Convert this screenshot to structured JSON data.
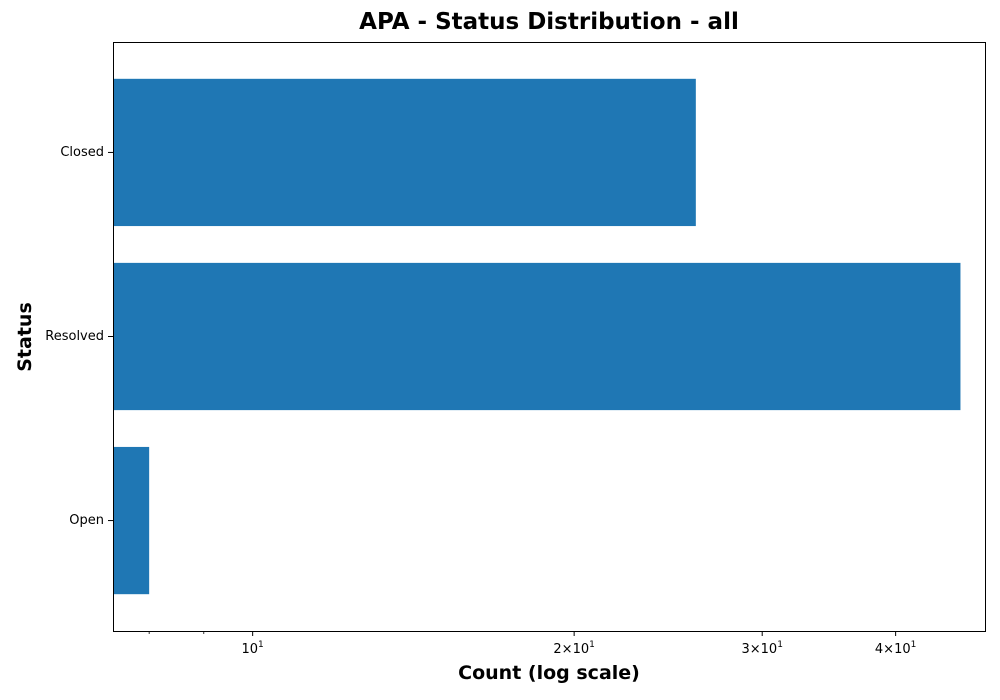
{
  "chart_data": {
    "type": "bar",
    "orientation": "horizontal",
    "title": "APA - Status Distribution - all",
    "xlabel": "Count (log scale)",
    "ylabel": "Status",
    "x_scale": "log",
    "xlim": [
      7.4,
      48.5
    ],
    "categories": [
      "Closed",
      "Resolved",
      "Open"
    ],
    "values": [
      26,
      46,
      8
    ],
    "bar_color": "#1f77b4",
    "grid": false,
    "legend": false,
    "x_ticks": [
      {
        "value": 10,
        "base": "10",
        "exp": "1"
      },
      {
        "value": 20,
        "coef": "2",
        "base": "10",
        "exp": "1"
      },
      {
        "value": 30,
        "coef": "3",
        "base": "10",
        "exp": "1"
      },
      {
        "value": 40,
        "coef": "4",
        "base": "10",
        "exp": "1"
      }
    ],
    "x_minor_ticks": [
      8,
      9
    ]
  }
}
